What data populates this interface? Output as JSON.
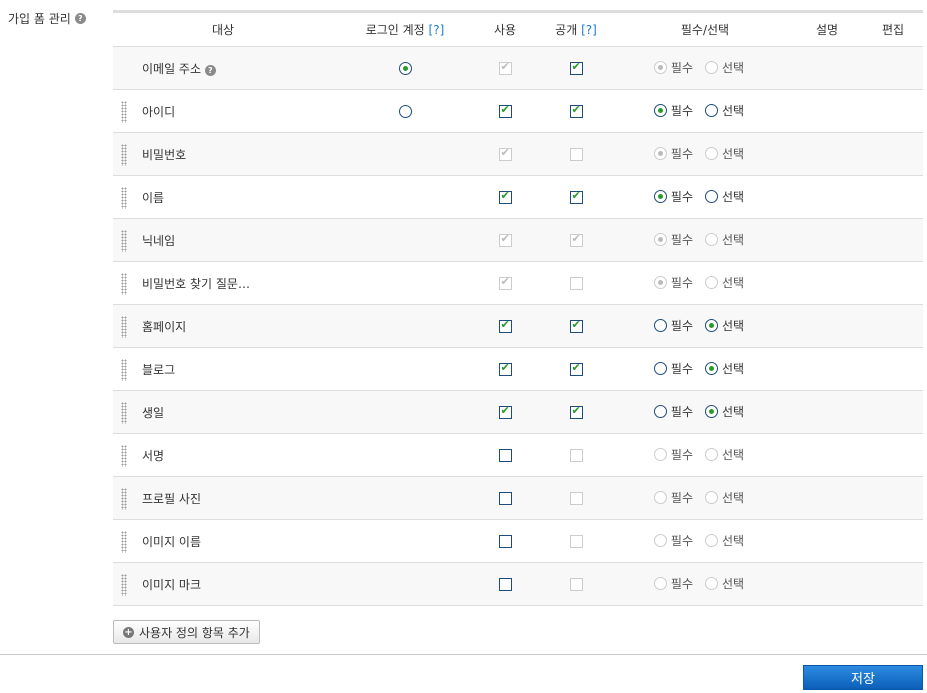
{
  "section": {
    "title": "가입 폼 관리",
    "help_icon": "question-circle-icon"
  },
  "headers": {
    "target": "대상",
    "login": "로그인 계정",
    "login_q": "[?]",
    "use": "사용",
    "public": "공개",
    "public_q": "[?]",
    "required": "필수/선택",
    "desc": "설명",
    "edit": "편집"
  },
  "options": {
    "required": "필수",
    "optional": "선택"
  },
  "rows": [
    {
      "name": "이메일 주소",
      "help": true,
      "drag": false,
      "login": "checked",
      "use": true,
      "use_dis": true,
      "pub": true,
      "pub_dis": false,
      "req": "required",
      "req_dis": true
    },
    {
      "name": "아이디",
      "drag": true,
      "login": "unchecked",
      "use": true,
      "use_dis": false,
      "pub": true,
      "pub_dis": false,
      "req": "required",
      "req_dis": false
    },
    {
      "name": "비밀번호",
      "drag": true,
      "use": true,
      "use_dis": true,
      "pub": false,
      "pub_dis": true,
      "req": "required",
      "req_dis": true
    },
    {
      "name": "이름",
      "drag": true,
      "use": true,
      "use_dis": false,
      "pub": true,
      "pub_dis": false,
      "req": "required",
      "req_dis": false
    },
    {
      "name": "닉네임",
      "drag": true,
      "use": true,
      "use_dis": true,
      "pub": true,
      "pub_dis": true,
      "req": "required",
      "req_dis": true
    },
    {
      "name": "비밀번호 찾기 질문…",
      "drag": true,
      "use": true,
      "use_dis": true,
      "pub": false,
      "pub_dis": true,
      "req": "required",
      "req_dis": true
    },
    {
      "name": "홈페이지",
      "drag": true,
      "use": true,
      "use_dis": false,
      "pub": true,
      "pub_dis": false,
      "req": "optional",
      "req_dis": false
    },
    {
      "name": "블로그",
      "drag": true,
      "use": true,
      "use_dis": false,
      "pub": true,
      "pub_dis": false,
      "req": "optional",
      "req_dis": false
    },
    {
      "name": "생일",
      "drag": true,
      "use": true,
      "use_dis": false,
      "pub": true,
      "pub_dis": false,
      "req": "optional",
      "req_dis": false
    },
    {
      "name": "서명",
      "drag": true,
      "use": false,
      "use_dis": false,
      "pub": false,
      "pub_dis": true,
      "req": "",
      "req_dis": true
    },
    {
      "name": "프로필 사진",
      "drag": true,
      "use": false,
      "use_dis": false,
      "pub": false,
      "pub_dis": true,
      "req": "",
      "req_dis": true
    },
    {
      "name": "이미지 이름",
      "drag": true,
      "use": false,
      "use_dis": false,
      "pub": false,
      "pub_dis": true,
      "req": "",
      "req_dis": true
    },
    {
      "name": "이미지 마크",
      "drag": true,
      "use": false,
      "use_dis": false,
      "pub": false,
      "pub_dis": true,
      "req": "",
      "req_dis": true
    }
  ],
  "buttons": {
    "add_custom": "사용자 정의 항목 추가",
    "save": "저장"
  },
  "colors": {
    "check": "#2a9a2a",
    "save_button": "#1a73cc"
  }
}
